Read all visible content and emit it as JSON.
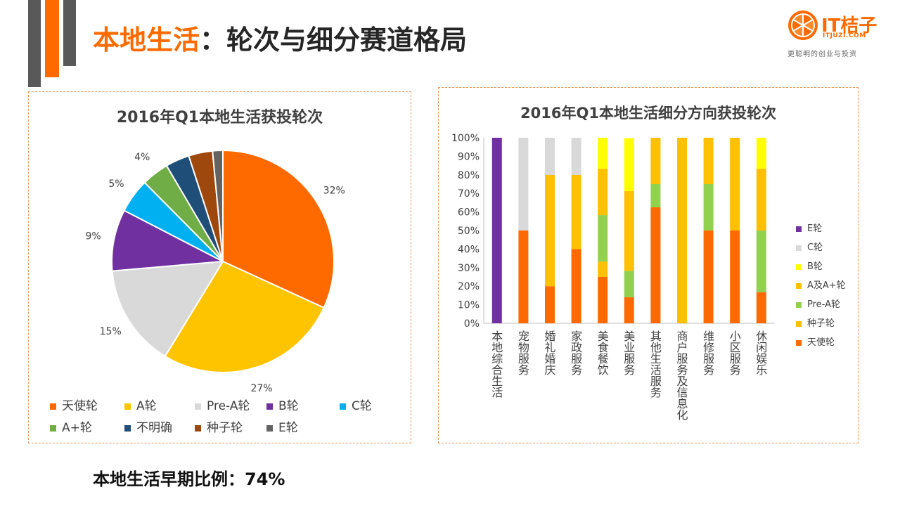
{
  "title": {
    "highlight": "本地生活",
    "rest": "：轮次与细分赛道格局"
  },
  "logo": {
    "name": "IT桔子",
    "url": "ITJUZI.COM",
    "slogan": "更聪明的创业与投资"
  },
  "footer": "本地生活早期比例：74%",
  "chart_data": [
    {
      "type": "pie",
      "title": "2016年Q1本地生活获投轮次",
      "slices": [
        {
          "label": "天使轮",
          "value": 32,
          "display": "32%",
          "color": "#ff6a00"
        },
        {
          "label": "A轮",
          "value": 27,
          "display": "27%",
          "color": "#ffc400"
        },
        {
          "label": "Pre-A轮",
          "value": 15,
          "display": "15%",
          "color": "#d9d9d9"
        },
        {
          "label": "B轮",
          "value": 9,
          "display": "9%",
          "color": "#7030a0"
        },
        {
          "label": "C轮",
          "value": 5,
          "display": "5%",
          "color": "#00b0f0"
        },
        {
          "label": "A+轮",
          "value": 4,
          "display": "4%",
          "color": "#70ad47"
        },
        {
          "label": "不明确",
          "value": 3.5,
          "display": "",
          "color": "#1f4e79"
        },
        {
          "label": "种子轮",
          "value": 3.5,
          "display": "",
          "color": "#9e480e"
        },
        {
          "label": "E轮",
          "value": 1.5,
          "display": "",
          "color": "#636363"
        }
      ],
      "legend": [
        "天使轮",
        "A轮",
        "Pre-A轮",
        "B轮",
        "C轮",
        "A+轮",
        "不明确",
        "种子轮",
        "E轮"
      ]
    },
    {
      "type": "bar",
      "stacked": true,
      "title": "2016年Q1本地生活细分方向获投轮次",
      "categories": [
        "本地综合生活",
        "宠物服务",
        "婚礼婚庆",
        "家政服务",
        "美食餐饮",
        "美业服务",
        "其他生活服务",
        "商户服务及信息化",
        "维修服务",
        "小区服务",
        "休闲娱乐"
      ],
      "ylim": [
        0,
        100
      ],
      "yticks": [
        "0%",
        "10%",
        "20%",
        "30%",
        "40%",
        "50%",
        "60%",
        "70%",
        "80%",
        "90%",
        "100%"
      ],
      "series": [
        {
          "name": "天使轮",
          "color": "#ff6a00",
          "values": [
            0,
            50,
            20,
            40,
            25,
            14,
            62.5,
            0,
            50,
            50,
            16.7
          ]
        },
        {
          "name": "种子轮",
          "color": "#ffc000",
          "values": [
            0,
            0,
            0,
            0,
            8.3,
            0,
            0,
            100,
            0,
            0,
            0
          ]
        },
        {
          "name": "Pre-A轮",
          "color": "#92d050",
          "values": [
            0,
            0,
            0,
            0,
            25,
            14.3,
            12.5,
            0,
            25,
            0,
            33.3
          ]
        },
        {
          "name": "A及A+轮",
          "color": "#ffc000",
          "values": [
            0,
            0,
            60,
            40,
            25,
            42.9,
            25,
            0,
            25,
            50,
            33.3
          ]
        },
        {
          "name": "B轮",
          "color": "#ffff00",
          "values": [
            0,
            0,
            0,
            0,
            16.7,
            28.6,
            0,
            0,
            0,
            0,
            16.7
          ]
        },
        {
          "name": "C轮",
          "color": "#d9d9d9",
          "values": [
            0,
            50,
            20,
            20,
            0,
            0,
            0,
            0,
            0,
            0,
            0
          ]
        },
        {
          "name": "E轮",
          "color": "#7030a0",
          "values": [
            100,
            0,
            0,
            0,
            0,
            0,
            0,
            0,
            0,
            0,
            0
          ]
        }
      ],
      "legend": [
        "E轮",
        "C轮",
        "B轮",
        "A及A+轮",
        "Pre-A轮",
        "种子轮",
        "天使轮"
      ]
    }
  ]
}
